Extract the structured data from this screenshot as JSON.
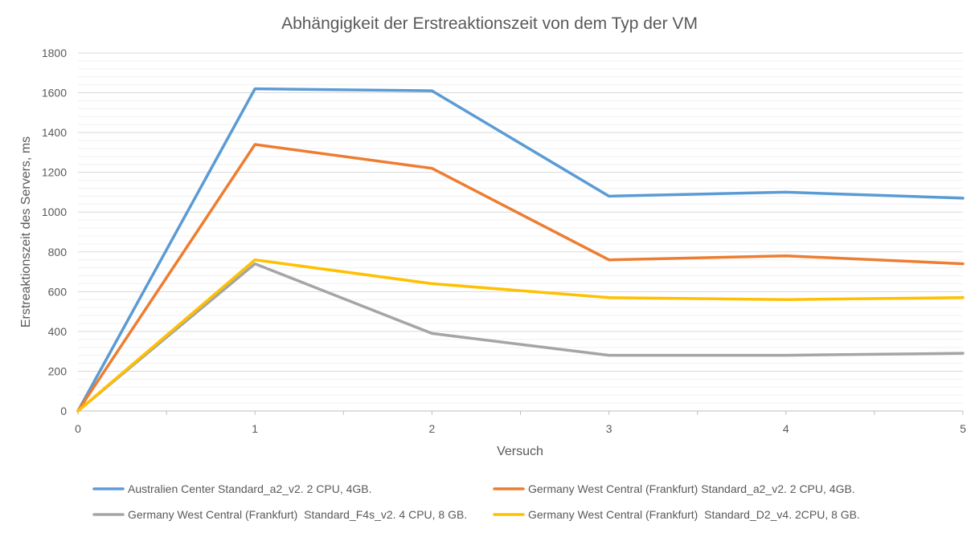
{
  "chart_data": {
    "type": "line",
    "title": "Abhängigkeit der Erstreaktionszeit von dem Typ der VM",
    "xlabel": "Versuch",
    "ylabel": "Erstreaktionszeit des Servers, ms",
    "x": [
      0,
      1,
      2,
      3,
      4,
      5
    ],
    "xlim": [
      0,
      5
    ],
    "ylim": [
      0,
      1800
    ],
    "y_major_ticks": [
      0,
      200,
      400,
      600,
      800,
      1000,
      1200,
      1400,
      1600,
      1800
    ],
    "grid": true,
    "legend_position": "bottom",
    "series": [
      {
        "name": "Australien Center Standard_a2_v2. 2 CPU, 4GB.",
        "color": "#5B9BD5",
        "values": [
          0,
          1620,
          1610,
          1080,
          1100,
          1070
        ]
      },
      {
        "name": "Germany West Central (Frankfurt) Standard_a2_v2. 2 CPU, 4GB.",
        "color": "#ED7D31",
        "values": [
          0,
          1340,
          1220,
          760,
          780,
          740
        ]
      },
      {
        "name": "Germany West Central (Frankfurt)  Standard_F4s_v2. 4 CPU, 8 GB.",
        "color": "#A5A5A5",
        "values": [
          0,
          740,
          390,
          280,
          280,
          290
        ]
      },
      {
        "name": "Germany West Central (Frankfurt)  Standard_D2_v4. 2CPU, 8 GB.",
        "color": "#FFC000",
        "values": [
          0,
          760,
          640,
          570,
          560,
          570
        ]
      }
    ]
  }
}
